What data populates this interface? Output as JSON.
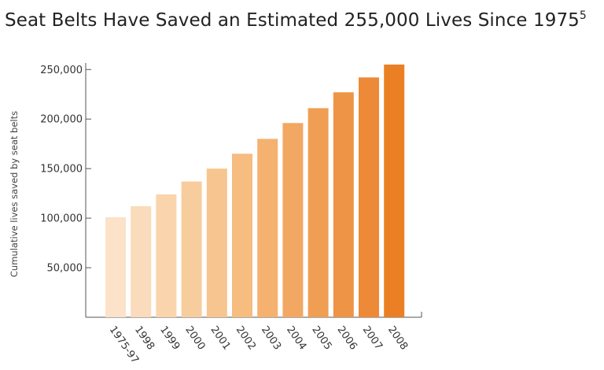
{
  "title": {
    "text": "Seat Belts Have Saved an Estimated 255,000 Lives Since 1975",
    "footnote": "5"
  },
  "chart_data": {
    "type": "bar",
    "title": "Seat Belts Have Saved an Estimated 255,000 Lives Since 1975",
    "xlabel": "",
    "ylabel": "Cumulative lives saved by seat belts",
    "ylim": [
      0,
      255000
    ],
    "yticks": [
      50000,
      100000,
      150000,
      200000,
      250000
    ],
    "ytick_labels": [
      "50,000",
      "100,000",
      "150,000",
      "200,000",
      "250,000"
    ],
    "categories": [
      "1975-97",
      "1998",
      "1999",
      "2000",
      "2001",
      "2002",
      "2003",
      "2004",
      "2005",
      "2006",
      "2007",
      "2008"
    ],
    "values": [
      101000,
      112000,
      124000,
      137000,
      150000,
      165000,
      180000,
      196000,
      211000,
      227000,
      242000,
      255000
    ],
    "colors": [
      "#fbe2c9",
      "#fadbbb",
      "#f9d4ac",
      "#f8cd9e",
      "#f7c58f",
      "#f6bc80",
      "#f4b170",
      "#f2a862",
      "#f09e53",
      "#ee9446",
      "#ec8a38",
      "#ea8023"
    ],
    "grid": false,
    "legend": "none"
  }
}
